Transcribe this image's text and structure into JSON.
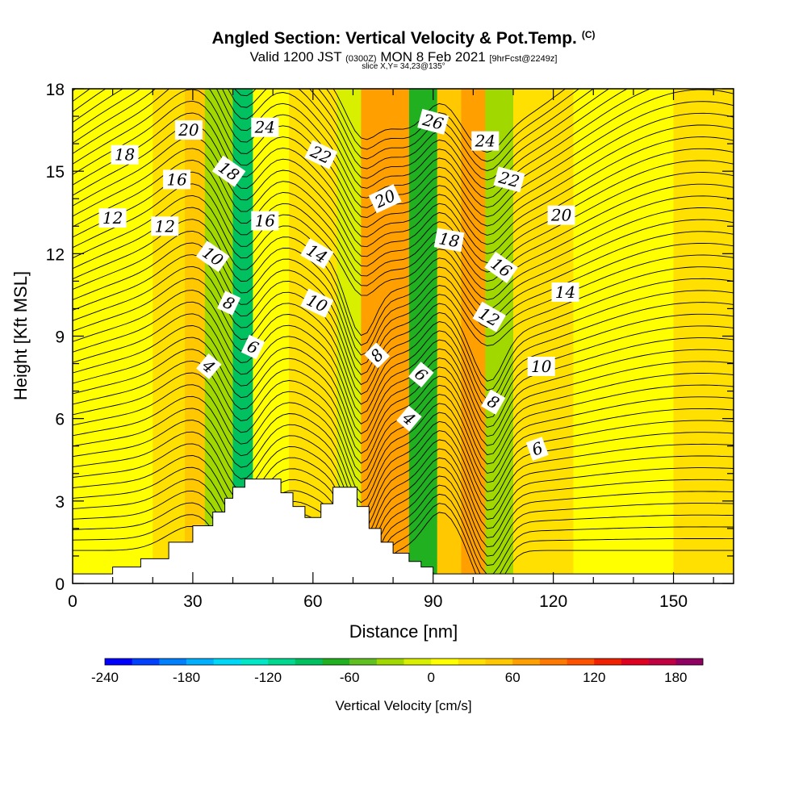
{
  "header": {
    "title": "Angled Section: Vertical Velocity & Pot.Temp.",
    "title_tag": "(C)",
    "valid_a": "Valid 1200 JST",
    "valid_b": "(0300Z)",
    "valid_c": "MON 8 Feb 2021",
    "valid_d": "[9hrFcst@2249z]",
    "slice": "slice X,Y= 34,23@135°"
  },
  "chart_data": {
    "type": "heatmap",
    "xlabel": "Distance [nm]",
    "ylabel": "Height [Kft MSL]",
    "xlim": [
      0,
      165
    ],
    "ylim": [
      0,
      18
    ],
    "x_ticks": [
      "0",
      "30",
      "60",
      "90",
      "120",
      "150"
    ],
    "x_tick_values": [
      0,
      30,
      60,
      90,
      120,
      150
    ],
    "y_ticks": [
      "0",
      "3",
      "6",
      "9",
      "12",
      "15",
      "18"
    ],
    "y_tick_values": [
      0,
      3,
      6,
      9,
      12,
      15,
      18
    ],
    "colorbar": {
      "title": "Vertical Velocity [cm/s]",
      "labels": [
        "-240",
        "-180",
        "-120",
        "-60",
        "0",
        "60",
        "120",
        "180"
      ],
      "label_values": [
        -240,
        -180,
        -120,
        -60,
        0,
        60,
        120,
        180
      ],
      "min": -240,
      "max": 200,
      "step": 20,
      "colors": [
        "#0000ff",
        "#0040ff",
        "#0080ff",
        "#00b0ff",
        "#00d8f8",
        "#00e8c8",
        "#00d890",
        "#00c060",
        "#20b020",
        "#60c020",
        "#a0d800",
        "#d8f000",
        "#ffff00",
        "#ffe000",
        "#ffc800",
        "#ffa000",
        "#ff7800",
        "#ff5000",
        "#f02000",
        "#e00020",
        "#c00040",
        "#900060"
      ]
    },
    "velocity_bands": [
      {
        "x": [
          0,
          20
        ],
        "value": 10
      },
      {
        "x": [
          20,
          28
        ],
        "value": 30
      },
      {
        "x": [
          28,
          33
        ],
        "value": 50
      },
      {
        "x": [
          33,
          40
        ],
        "value": -40
      },
      {
        "x": [
          40,
          45
        ],
        "value": -90
      },
      {
        "x": [
          45,
          54
        ],
        "value": 10
      },
      {
        "x": [
          54,
          66
        ],
        "value": 30
      },
      {
        "x": [
          66,
          72
        ],
        "value": -20
      },
      {
        "x": [
          72,
          84
        ],
        "value": 60
      },
      {
        "x": [
          84,
          91
        ],
        "value": -70
      },
      {
        "x": [
          91,
          97
        ],
        "value": 40
      },
      {
        "x": [
          97,
          103
        ],
        "value": 70
      },
      {
        "x": [
          103,
          110
        ],
        "value": -30
      },
      {
        "x": [
          110,
          125
        ],
        "value": 20
      },
      {
        "x": [
          125,
          150
        ],
        "value": 10
      },
      {
        "x": [
          150,
          165
        ],
        "value": 20
      }
    ],
    "terrain": [
      [
        0,
        0.35
      ],
      [
        10,
        0.35
      ],
      [
        10,
        0.6
      ],
      [
        17,
        0.6
      ],
      [
        17,
        0.9
      ],
      [
        24,
        0.9
      ],
      [
        24,
        1.5
      ],
      [
        30,
        1.5
      ],
      [
        30,
        2.1
      ],
      [
        35,
        2.1
      ],
      [
        35,
        2.6
      ],
      [
        38,
        2.6
      ],
      [
        38,
        3.1
      ],
      [
        40,
        3.1
      ],
      [
        40,
        3.5
      ],
      [
        43,
        3.5
      ],
      [
        43,
        3.8
      ],
      [
        52,
        3.8
      ],
      [
        52,
        3.3
      ],
      [
        55,
        3.3
      ],
      [
        55,
        2.8
      ],
      [
        58,
        2.8
      ],
      [
        58,
        2.4
      ],
      [
        62,
        2.4
      ],
      [
        62,
        2.9
      ],
      [
        65,
        2.9
      ],
      [
        65,
        3.5
      ],
      [
        71,
        3.5
      ],
      [
        71,
        2.8
      ],
      [
        74,
        2.8
      ],
      [
        74,
        2.0
      ],
      [
        77,
        2.0
      ],
      [
        77,
        1.5
      ],
      [
        80,
        1.5
      ],
      [
        80,
        1.1
      ],
      [
        84,
        1.1
      ],
      [
        84,
        0.8
      ],
      [
        87,
        0.8
      ],
      [
        87,
        0.6
      ],
      [
        90,
        0.6
      ],
      [
        90,
        0.35
      ],
      [
        165,
        0.35
      ]
    ],
    "isentrope_labels": [
      {
        "text": "20",
        "x": 29,
        "y": 16.5,
        "angle": 0
      },
      {
        "text": "24",
        "x": 48,
        "y": 16.6,
        "angle": 0
      },
      {
        "text": "26",
        "x": 90,
        "y": 16.8,
        "angle": 15
      },
      {
        "text": "24",
        "x": 103,
        "y": 16.1,
        "angle": 0
      },
      {
        "text": "18",
        "x": 13,
        "y": 15.6,
        "angle": 0
      },
      {
        "text": "22",
        "x": 62,
        "y": 15.6,
        "angle": 25
      },
      {
        "text": "18",
        "x": 39,
        "y": 15.0,
        "angle": 35
      },
      {
        "text": "16",
        "x": 26,
        "y": 14.7,
        "angle": 0
      },
      {
        "text": "22",
        "x": 109,
        "y": 14.7,
        "angle": 15
      },
      {
        "text": "20",
        "x": 78,
        "y": 14.0,
        "angle": -25
      },
      {
        "text": "12",
        "x": 10,
        "y": 13.3,
        "angle": 0
      },
      {
        "text": "12",
        "x": 23,
        "y": 13.0,
        "angle": 0
      },
      {
        "text": "16",
        "x": 48,
        "y": 13.2,
        "angle": 0
      },
      {
        "text": "20",
        "x": 122,
        "y": 13.4,
        "angle": 0
      },
      {
        "text": "18",
        "x": 94,
        "y": 12.5,
        "angle": 10
      },
      {
        "text": "14",
        "x": 61,
        "y": 12.0,
        "angle": 30
      },
      {
        "text": "10",
        "x": 35,
        "y": 11.9,
        "angle": 35
      },
      {
        "text": "16",
        "x": 107,
        "y": 11.5,
        "angle": 35
      },
      {
        "text": "14",
        "x": 123,
        "y": 10.6,
        "angle": 0
      },
      {
        "text": "10",
        "x": 61,
        "y": 10.2,
        "angle": 25
      },
      {
        "text": "8",
        "x": 39,
        "y": 10.2,
        "angle": 25
      },
      {
        "text": "12",
        "x": 104,
        "y": 9.7,
        "angle": 30
      },
      {
        "text": "6",
        "x": 45,
        "y": 8.6,
        "angle": 25
      },
      {
        "text": "8",
        "x": 76,
        "y": 8.3,
        "angle": -45
      },
      {
        "text": "4",
        "x": 34,
        "y": 7.9,
        "angle": 40
      },
      {
        "text": "10",
        "x": 117,
        "y": 7.9,
        "angle": 0
      },
      {
        "text": "6",
        "x": 87,
        "y": 7.6,
        "angle": 40
      },
      {
        "text": "8",
        "x": 105,
        "y": 6.6,
        "angle": 30
      },
      {
        "text": "4",
        "x": 84,
        "y": 6.0,
        "angle": 40
      },
      {
        "text": "6",
        "x": 116,
        "y": 4.9,
        "angle": -20
      }
    ]
  }
}
